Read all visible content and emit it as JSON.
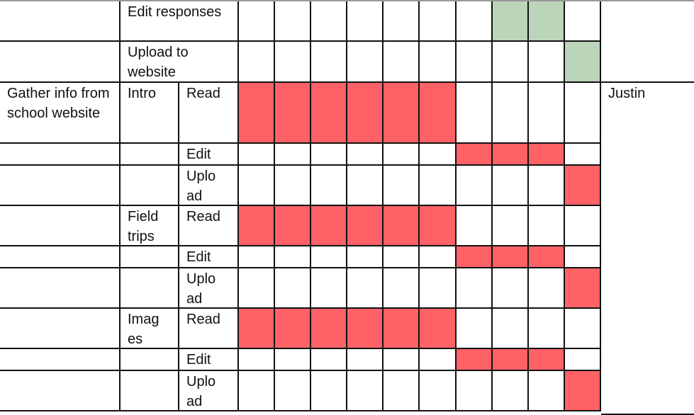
{
  "colors": {
    "red": "#ff6266",
    "green": "#bcd4b9"
  },
  "owner": "Justin",
  "rows": [
    {
      "task": "",
      "sub": "Edit responses",
      "step": null,
      "cells": [
        "",
        "",
        "",
        "",
        "",
        "",
        "",
        "green",
        "green",
        ""
      ]
    },
    {
      "task": "",
      "sub": "Upload to website",
      "step": null,
      "cells": [
        "",
        "",
        "",
        "",
        "",
        "",
        "",
        "",
        "",
        "green"
      ]
    },
    {
      "task": "Gather info from school website",
      "sub": "Intro",
      "step": "Read",
      "cells": [
        "red",
        "red",
        "red",
        "red",
        "red",
        "red",
        "",
        "",
        "",
        ""
      ]
    },
    {
      "task": "",
      "sub": "",
      "step": "Edit",
      "cells": [
        "",
        "",
        "",
        "",
        "",
        "",
        "red",
        "red",
        "red",
        ""
      ]
    },
    {
      "task": "",
      "sub": "",
      "step": "Uplo ad",
      "cells": [
        "",
        "",
        "",
        "",
        "",
        "",
        "",
        "",
        "",
        "red"
      ]
    },
    {
      "task": "",
      "sub": "Field trips",
      "step": "Read",
      "cells": [
        "red",
        "red",
        "red",
        "red",
        "red",
        "red",
        "",
        "",
        "",
        ""
      ]
    },
    {
      "task": "",
      "sub": "",
      "step": "Edit",
      "cells": [
        "",
        "",
        "",
        "",
        "",
        "",
        "red",
        "red",
        "red",
        ""
      ]
    },
    {
      "task": "",
      "sub": "",
      "step": "Uplo ad",
      "cells": [
        "",
        "",
        "",
        "",
        "",
        "",
        "",
        "",
        "",
        "red"
      ]
    },
    {
      "task": "",
      "sub": "Imag es",
      "step": "Read",
      "cells": [
        "red",
        "red",
        "red",
        "red",
        "red",
        "red",
        "",
        "",
        "",
        ""
      ]
    },
    {
      "task": "",
      "sub": "",
      "step": "Edit",
      "cells": [
        "",
        "",
        "",
        "",
        "",
        "",
        "red",
        "red",
        "red",
        ""
      ]
    },
    {
      "task": "",
      "sub": "",
      "step": "Uplo ad",
      "cells": [
        "",
        "",
        "",
        "",
        "",
        "",
        "",
        "",
        "",
        "red"
      ]
    }
  ]
}
